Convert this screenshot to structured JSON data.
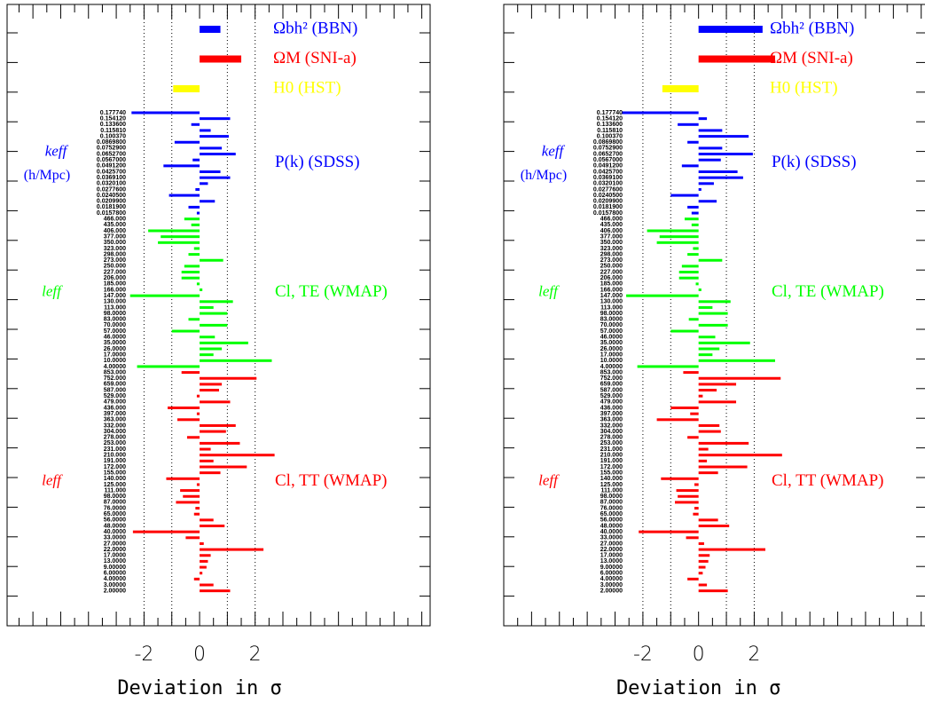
{
  "chart_data": [
    {
      "type": "bar",
      "orientation": "horizontal",
      "xlabel": "Deviation in σ",
      "xlim": [
        -6.93,
        8.3
      ],
      "xticks": [
        -2,
        0,
        2
      ],
      "reference_lines": [
        -2,
        -1,
        1,
        2
      ],
      "series": [
        {
          "name": "Ωbh² (BBN)",
          "color": "#0000ff",
          "values": [
            0.75
          ]
        },
        {
          "name": "ΩM (SNI-a)",
          "color": "#ff0000",
          "values": [
            1.5
          ]
        },
        {
          "name": "H0 (HST)",
          "color": "#ffff00",
          "values": [
            -0.95
          ]
        },
        {
          "name": "P(k) (SDSS)",
          "color": "#0000ff",
          "group_label": "keff",
          "group_sublabel": "(h/Mpc)",
          "categories": [
            "0.177740",
            "0.154120",
            "0.133600",
            "0.115810",
            "0.100370",
            "0.0869800",
            "0.0752900",
            "0.0652700",
            "0.0567000",
            "0.0491200",
            "0.0425700",
            "0.0369100",
            "0.0320100",
            "0.0277600",
            "0.0240500",
            "0.0209900",
            "0.0181900",
            "0.0157800"
          ],
          "values": [
            -2.45,
            1.1,
            -0.3,
            0.4,
            1.05,
            -0.9,
            0.8,
            1.3,
            -0.25,
            -1.3,
            0.75,
            1.1,
            0.3,
            -0.15,
            -1.1,
            0.55,
            -0.4,
            -0.1
          ]
        },
        {
          "name": "Cl, TE (WMAP)",
          "color": "#00ff00",
          "group_label": "leff",
          "categories": [
            "466.000",
            "435.000",
            "406.000",
            "377.000",
            "350.000",
            "323.000",
            "298.000",
            "273.000",
            "250.000",
            "227.000",
            "206.000",
            "185.000",
            "166.000",
            "147.000",
            "130.000",
            "113.000",
            "98.0000",
            "83.0000",
            "70.0000",
            "57.0000",
            "46.0000",
            "35.0000",
            "26.0000",
            "17.0000",
            "10.0000",
            "4.00000"
          ],
          "values": [
            -0.55,
            -0.3,
            -1.85,
            -1.4,
            -1.5,
            -0.2,
            -0.4,
            0.85,
            -0.55,
            -0.65,
            -0.65,
            -0.1,
            0.1,
            -2.5,
            1.2,
            0.5,
            1.0,
            -0.4,
            1.0,
            -1.0,
            0.55,
            1.75,
            0.8,
            0.5,
            2.6,
            -2.25
          ]
        },
        {
          "name": "Cl, TT (WMAP)",
          "color": "#ff0000",
          "group_label": "leff",
          "categories": [
            "853.000",
            "752.000",
            "659.000",
            "587.000",
            "529.000",
            "479.000",
            "436.000",
            "397.000",
            "363.000",
            "332.000",
            "304.000",
            "278.000",
            "253.000",
            "231.000",
            "210.000",
            "191.000",
            "172.000",
            "155.000",
            "140.000",
            "125.000",
            "111.000",
            "98.0000",
            "87.0000",
            "76.0000",
            "65.0000",
            "56.0000",
            "48.0000",
            "40.0000",
            "33.0000",
            "27.0000",
            "22.0000",
            "17.0000",
            "13.0000",
            "9.00000",
            "6.00000",
            "4.00000",
            "3.00000",
            "2.00000"
          ],
          "values": [
            -0.65,
            2.05,
            0.8,
            0.7,
            -0.1,
            1.1,
            -1.15,
            -0.1,
            -0.8,
            1.3,
            0.95,
            -0.45,
            1.45,
            0.4,
            2.7,
            0.5,
            1.7,
            0.75,
            -1.2,
            -0.1,
            -0.7,
            -0.6,
            -0.85,
            -0.15,
            -0.2,
            0.5,
            0.9,
            -2.4,
            -0.5,
            0.15,
            2.3,
            0.4,
            0.3,
            0.25,
            0.1,
            -0.2,
            0.5,
            1.1
          ]
        }
      ]
    },
    {
      "type": "bar",
      "orientation": "horizontal",
      "xlabel": "Deviation in σ",
      "xlim": [
        -7.0,
        8.2
      ],
      "xticks": [
        -2,
        0,
        2
      ],
      "reference_lines": [
        -2,
        -1,
        1,
        2
      ],
      "series": [
        {
          "name": "Ωbh² (BBN)",
          "color": "#0000ff",
          "values": [
            2.3
          ]
        },
        {
          "name": "ΩM (SNI-a)",
          "color": "#ff0000",
          "values": [
            2.75
          ]
        },
        {
          "name": "H0 (HST)",
          "color": "#ffff00",
          "values": [
            -1.3
          ]
        },
        {
          "name": "P(k) (SDSS)",
          "color": "#0000ff",
          "group_label": "keff",
          "group_sublabel": "(h/Mpc)",
          "categories": [
            "0.177740",
            "0.154120",
            "0.133600",
            "0.115810",
            "0.100370",
            "0.0869800",
            "0.0752900",
            "0.0652700",
            "0.0567000",
            "0.0491200",
            "0.0425700",
            "0.0369100",
            "0.0320100",
            "0.0277600",
            "0.0240500",
            "0.0209900",
            "0.0181900",
            "0.0157800"
          ],
          "values": [
            -2.75,
            0.3,
            -0.75,
            0.85,
            1.8,
            -0.4,
            0.85,
            1.95,
            0.8,
            -0.6,
            1.4,
            1.6,
            0.55,
            0.1,
            -1.0,
            0.65,
            -0.4,
            -0.25
          ]
        },
        {
          "name": "Cl, TE (WMAP)",
          "color": "#00ff00",
          "group_label": "leff",
          "categories": [
            "466.000",
            "435.000",
            "406.000",
            "377.000",
            "350.000",
            "323.000",
            "298.000",
            "273.000",
            "250.000",
            "227.000",
            "206.000",
            "185.000",
            "166.000",
            "147.000",
            "130.000",
            "113.000",
            "98.0000",
            "83.0000",
            "70.0000",
            "57.0000",
            "46.0000",
            "35.0000",
            "26.0000",
            "17.0000",
            "10.0000",
            "4.00000"
          ],
          "values": [
            -0.5,
            -0.25,
            -1.85,
            -1.4,
            -1.5,
            -0.2,
            -0.4,
            0.85,
            -0.6,
            -0.7,
            -0.7,
            -0.1,
            0.1,
            -2.6,
            1.15,
            0.5,
            1.05,
            -0.35,
            1.05,
            -1.0,
            0.6,
            1.85,
            0.75,
            0.5,
            2.75,
            -2.2
          ]
        },
        {
          "name": "Cl, TT (WMAP)",
          "color": "#ff0000",
          "group_label": "leff",
          "categories": [
            "853.000",
            "752.000",
            "659.000",
            "587.000",
            "529.000",
            "479.000",
            "436.000",
            "397.000",
            "363.000",
            "332.000",
            "304.000",
            "278.000",
            "253.000",
            "231.000",
            "210.000",
            "191.000",
            "172.000",
            "155.000",
            "140.000",
            "125.000",
            "111.000",
            "98.0000",
            "87.0000",
            "76.0000",
            "65.0000",
            "56.0000",
            "48.0000",
            "40.0000",
            "33.0000",
            "27.0000",
            "22.0000",
            "17.0000",
            "13.0000",
            "9.00000",
            "6.00000",
            "4.00000",
            "3.00000",
            "2.00000"
          ],
          "values": [
            -0.55,
            2.95,
            1.35,
            0.65,
            0.15,
            1.35,
            -1.0,
            -0.3,
            -1.5,
            0.75,
            0.8,
            -0.4,
            1.8,
            0.35,
            3.0,
            0.3,
            1.75,
            0.7,
            -1.35,
            -0.15,
            -0.8,
            -0.75,
            -0.85,
            -0.15,
            -0.2,
            0.7,
            1.1,
            -2.15,
            -0.45,
            0.2,
            2.4,
            0.4,
            0.35,
            0.25,
            0.15,
            -0.4,
            0.3,
            1.05
          ]
        }
      ]
    }
  ]
}
